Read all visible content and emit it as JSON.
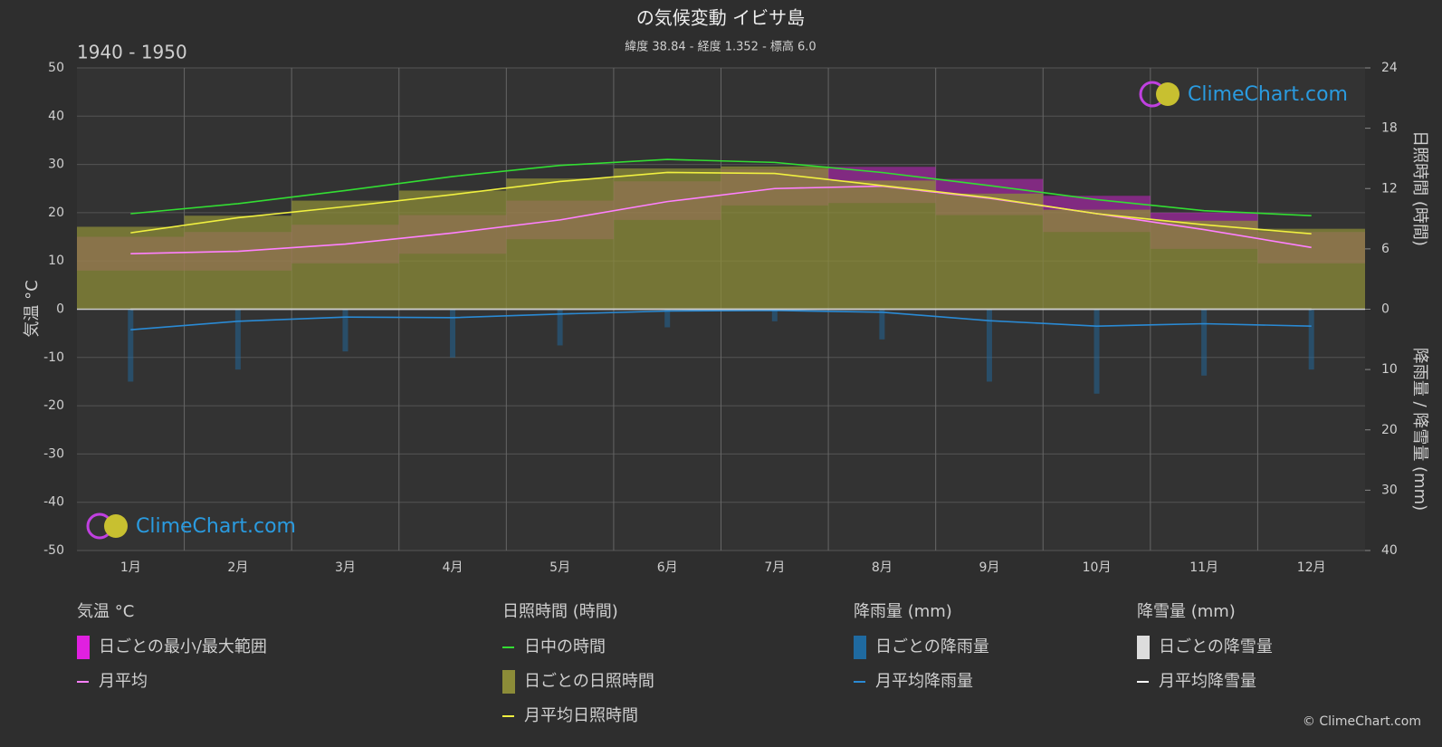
{
  "chart_data": {
    "type": "climate",
    "title": "の気候変動 イビサ島",
    "subtitle": "緯度 38.84 - 経度 1.352 - 標高 6.0",
    "period": "1940 - 1950",
    "logo": "ClimeChart.com",
    "copyright": "© ClimeChart.com",
    "y_label": "気温 °C",
    "y2_label": "日照時間 (時間)",
    "y3_label": "降雨量 / 降雪量 (mm)",
    "categories": [
      "1月",
      "2月",
      "3月",
      "4月",
      "5月",
      "6月",
      "7月",
      "8月",
      "9月",
      "10月",
      "11月",
      "12月"
    ],
    "ylim": [
      -50,
      50
    ],
    "yticks": [
      -50,
      -40,
      -30,
      -20,
      -10,
      0,
      10,
      20,
      30,
      40,
      50
    ],
    "y2lim": [
      0,
      24
    ],
    "y2ticks": [
      0,
      6,
      12,
      18,
      24
    ],
    "y3lim": [
      0,
      40
    ],
    "y3ticks": [
      0,
      10,
      20,
      30,
      40
    ],
    "groups": [
      {
        "title": "気温 °C",
        "series": [
          {
            "name": "日ごとの最小/最大範囲",
            "kind": "band",
            "axis": "y",
            "color": "#e020e0",
            "low": [
              8,
              8,
              9.5,
              11.5,
              14.5,
              18.5,
              21.5,
              22,
              19.5,
              16,
              12.5,
              9.5
            ],
            "high": [
              15,
              16,
              17.5,
              19.5,
              22.5,
              26.5,
              29,
              29.5,
              27,
              23.5,
              20,
              16
            ]
          },
          {
            "name": "月平均",
            "kind": "line",
            "axis": "y",
            "color": "#ff80ff",
            "values": [
              11.5,
              12,
              13.5,
              15.8,
              18.5,
              22.3,
              25,
              25.5,
              23,
              19.8,
              16.5,
              12.8
            ]
          }
        ]
      },
      {
        "title": "日照時間 (時間)",
        "series": [
          {
            "name": "日中の時間",
            "kind": "line",
            "axis": "y2",
            "color": "#33dd33",
            "values": [
              9.5,
              10.5,
              11.8,
              13.2,
              14.3,
              14.9,
              14.6,
              13.6,
              12.3,
              10.9,
              9.8,
              9.3
            ]
          },
          {
            "name": "日ごとの日照時間",
            "kind": "area",
            "axis": "y2",
            "color": "#8c8c38",
            "values": [
              8.2,
              9.3,
              10.8,
              11.8,
              13,
              14,
              14.2,
              12.8,
              11.5,
              9.9,
              8.8,
              8
            ]
          },
          {
            "name": "月平均日照時間",
            "kind": "line",
            "axis": "y2",
            "color": "#f0f040",
            "values": [
              7.6,
              9.1,
              10.2,
              11.4,
              12.7,
              13.6,
              13.5,
              12.3,
              11.1,
              9.5,
              8.4,
              7.5
            ]
          }
        ]
      },
      {
        "title": "降雨量 (mm)",
        "series": [
          {
            "name": "日ごとの降雨量",
            "kind": "bars",
            "axis": "y3",
            "color": "#1f6aa0",
            "values": [
              12,
              10,
              7,
              8,
              6,
              3,
              2,
              5,
              12,
              14,
              11,
              10
            ]
          },
          {
            "name": "月平均降雨量",
            "kind": "line",
            "axis": "y3",
            "color": "#2a8ad4",
            "values": [
              3.4,
              2,
              1.3,
              1.4,
              0.8,
              0.3,
              0.2,
              0.5,
              1.9,
              2.8,
              2.4,
              2.8
            ]
          }
        ]
      },
      {
        "title": "降雪量 (mm)",
        "series": [
          {
            "name": "日ごとの降雪量",
            "kind": "bars",
            "axis": "y3",
            "color": "#dddddd",
            "values": [
              0,
              0,
              0,
              0,
              0,
              0,
              0,
              0,
              0,
              0,
              0,
              0
            ]
          },
          {
            "name": "月平均降雪量",
            "kind": "line",
            "axis": "y3",
            "color": "#ffffff",
            "values": [
              0,
              0,
              0,
              0,
              0,
              0,
              0,
              0,
              0,
              0,
              0,
              0
            ]
          }
        ]
      }
    ]
  }
}
